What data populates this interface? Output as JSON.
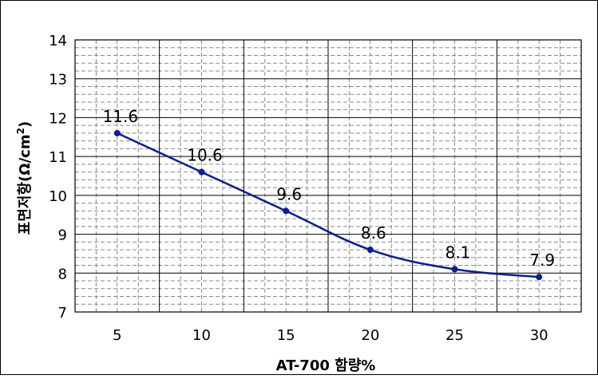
{
  "chart_data": {
    "type": "line",
    "xlabel": "AT-700 함량%",
    "ylabel": "표면저항(Ω/cm²)",
    "ylabel_main": "표면저항(Ω/cm",
    "ylabel_sup": "2",
    "ylabel_tail": ")",
    "x": [
      5,
      10,
      15,
      20,
      25,
      30
    ],
    "x_ticks": [
      "5",
      "10",
      "15",
      "20",
      "25",
      "30"
    ],
    "ylim": [
      7,
      14
    ],
    "y_ticks": [
      "7",
      "8",
      "9",
      "10",
      "11",
      "12",
      "13",
      "14"
    ],
    "series": [
      {
        "values": [
          11.6,
          10.6,
          9.6,
          8.6,
          8.1,
          7.9
        ]
      }
    ],
    "data_labels": [
      "11.6",
      "10.6",
      "9.6",
      "8.6",
      "8.1",
      "7.9"
    ],
    "grid": true,
    "line_color": "#0b1f8f",
    "marker_color": "#0b1f8f"
  }
}
